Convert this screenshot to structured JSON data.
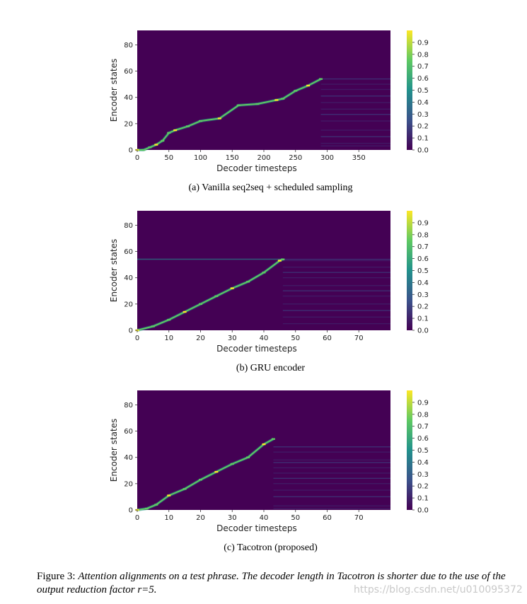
{
  "chart_data": [
    {
      "type": "heatmap",
      "title": "",
      "xlabel": "Decoder timesteps",
      "ylabel": "Encoder states",
      "xlim": [
        0,
        400
      ],
      "ylim": [
        0,
        91
      ],
      "xticks": [
        0,
        50,
        100,
        150,
        200,
        250,
        300,
        350
      ],
      "yticks": [
        0,
        20,
        40,
        60,
        80
      ],
      "colorbar": {
        "min": 0.0,
        "max": 1.0,
        "ticks": [
          "0.0",
          "0.1",
          "0.2",
          "0.3",
          "0.4",
          "0.5",
          "0.6",
          "0.7",
          "0.8",
          "0.9"
        ],
        "colors": [
          "#440154",
          "#3b528b",
          "#21918c",
          "#5ec962",
          "#fde725"
        ]
      },
      "alignment_path": [
        [
          0,
          0
        ],
        [
          10,
          0
        ],
        [
          20,
          2
        ],
        [
          30,
          4
        ],
        [
          40,
          7
        ],
        [
          50,
          13
        ],
        [
          60,
          15
        ],
        [
          80,
          18
        ],
        [
          100,
          22
        ],
        [
          130,
          24
        ],
        [
          160,
          34
        ],
        [
          190,
          35
        ],
        [
          220,
          38
        ],
        [
          230,
          39
        ],
        [
          250,
          45
        ],
        [
          270,
          49
        ],
        [
          290,
          54
        ]
      ],
      "caption": "(a)  Vanilla seq2seq + scheduled sampling"
    },
    {
      "type": "heatmap",
      "title": "",
      "xlabel": "Decoder timesteps",
      "ylabel": "Encoder states",
      "xlim": [
        0,
        80
      ],
      "ylim": [
        0,
        91
      ],
      "xticks": [
        0,
        10,
        20,
        30,
        40,
        50,
        60,
        70
      ],
      "yticks": [
        0,
        20,
        40,
        60,
        80
      ],
      "colorbar": {
        "min": 0.0,
        "max": 1.0,
        "ticks": [
          "0.0",
          "0.1",
          "0.2",
          "0.3",
          "0.4",
          "0.5",
          "0.6",
          "0.7",
          "0.8",
          "0.9"
        ],
        "colors": [
          "#440154",
          "#3b528b",
          "#21918c",
          "#5ec962",
          "#fde725"
        ]
      },
      "alignment_path": [
        [
          0,
          0
        ],
        [
          5,
          3
        ],
        [
          10,
          8
        ],
        [
          15,
          14
        ],
        [
          20,
          20
        ],
        [
          25,
          26
        ],
        [
          30,
          32
        ],
        [
          35,
          37
        ],
        [
          40,
          44
        ],
        [
          45,
          53
        ],
        [
          46,
          54
        ]
      ],
      "caption": "(b)  GRU encoder"
    },
    {
      "type": "heatmap",
      "title": "",
      "xlabel": "Decoder timesteps",
      "ylabel": "Encoder states",
      "xlim": [
        0,
        80
      ],
      "ylim": [
        0,
        91
      ],
      "xticks": [
        0,
        10,
        20,
        30,
        40,
        50,
        60,
        70
      ],
      "yticks": [
        0,
        20,
        40,
        60,
        80
      ],
      "colorbar": {
        "min": 0.0,
        "max": 1.0,
        "ticks": [
          "0.0",
          "0.1",
          "0.2",
          "0.3",
          "0.4",
          "0.5",
          "0.6",
          "0.7",
          "0.8",
          "0.9"
        ],
        "colors": [
          "#440154",
          "#3b528b",
          "#21918c",
          "#5ec962",
          "#fde725"
        ]
      },
      "alignment_path": [
        [
          0,
          0
        ],
        [
          3,
          1
        ],
        [
          6,
          4
        ],
        [
          10,
          11
        ],
        [
          15,
          16
        ],
        [
          20,
          23
        ],
        [
          25,
          29
        ],
        [
          30,
          35
        ],
        [
          35,
          40
        ],
        [
          40,
          50
        ],
        [
          43,
          54
        ]
      ],
      "caption": "(c)  Tacotron (proposed)"
    }
  ],
  "figure_caption": {
    "label": "Figure 3: ",
    "text": "Attention alignments on a test phrase.  The decoder length in Tacotron is shorter due to the use of the output reduction factor r=5."
  },
  "watermark": "https://blog.csdn.net/u010095372"
}
